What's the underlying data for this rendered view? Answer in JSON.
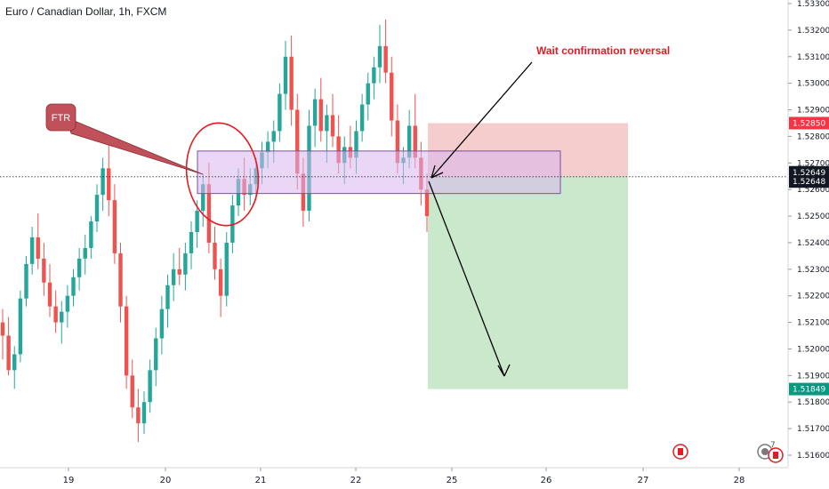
{
  "header": {
    "title": "Euro / Canadian Dollar, 1h, FXCM"
  },
  "chart_data": {
    "type": "candlestick",
    "symbol": "EURCAD",
    "timeframe": "1h",
    "ylim": [
      1.5155,
      1.5335
    ],
    "y_ticks": [
      "1.53300",
      "1.53200",
      "1.53100",
      "1.53000",
      "1.52900",
      "1.52800",
      "1.52700",
      "1.52600",
      "1.52500",
      "1.52400",
      "1.52300",
      "1.52200",
      "1.52100",
      "1.52000",
      "1.51900",
      "1.51800",
      "1.51700",
      "1.51600"
    ],
    "y_tick_values": [
      1.533,
      1.532,
      1.531,
      1.53,
      1.529,
      1.528,
      1.527,
      1.526,
      1.525,
      1.524,
      1.523,
      1.522,
      1.521,
      1.52,
      1.519,
      1.518,
      1.517,
      1.516
    ],
    "x_ticks": [
      "19",
      "20",
      "21",
      "22",
      "25",
      "26",
      "27",
      "28"
    ],
    "x_tick_bars": [
      17,
      44,
      71,
      98,
      125,
      151,
      178,
      205
    ],
    "bars_total": 218,
    "colors": {
      "up": "#26a69a",
      "down": "#ef5350",
      "ftr_callout": "#c0505a",
      "annotation": "#e31b23",
      "zone_fill": "#d8b6ee",
      "zone_stroke": "#7b4fa0",
      "stop_fill": "#f5c4c4",
      "target_fill": "#c3e6c6",
      "price_tag": "#131722",
      "stop_tag": "#f23645",
      "target_tag": "#089981"
    },
    "ohlc": [
      [
        1.521,
        1.5215,
        1.5196,
        1.5205
      ],
      [
        1.5205,
        1.5212,
        1.519,
        1.5192
      ],
      [
        1.5192,
        1.5201,
        1.5185,
        1.5198
      ],
      [
        1.5198,
        1.5222,
        1.5195,
        1.5219
      ],
      [
        1.5219,
        1.5235,
        1.5216,
        1.5232
      ],
      [
        1.5232,
        1.5246,
        1.5228,
        1.5242
      ],
      [
        1.5242,
        1.5251,
        1.523,
        1.5234
      ],
      [
        1.5234,
        1.524,
        1.522,
        1.5225
      ],
      [
        1.5225,
        1.5232,
        1.5212,
        1.5216
      ],
      [
        1.5216,
        1.5222,
        1.5206,
        1.521
      ],
      [
        1.521,
        1.5218,
        1.5202,
        1.5214
      ],
      [
        1.5214,
        1.5224,
        1.5208,
        1.522
      ],
      [
        1.522,
        1.523,
        1.5216,
        1.5227
      ],
      [
        1.5227,
        1.5238,
        1.5222,
        1.5234
      ],
      [
        1.5234,
        1.5243,
        1.5228,
        1.5238
      ],
      [
        1.5238,
        1.525,
        1.5234,
        1.5248
      ],
      [
        1.5248,
        1.5262,
        1.5244,
        1.5258
      ],
      [
        1.5258,
        1.5272,
        1.5252,
        1.5268
      ],
      [
        1.5268,
        1.5278,
        1.525,
        1.5256
      ],
      [
        1.5256,
        1.5262,
        1.5232,
        1.5236
      ],
      [
        1.5236,
        1.524,
        1.521,
        1.5216
      ],
      [
        1.5216,
        1.522,
        1.5185,
        1.519
      ],
      [
        1.519,
        1.5196,
        1.5174,
        1.5178
      ],
      [
        1.5178,
        1.5185,
        1.5165,
        1.5172
      ],
      [
        1.5172,
        1.5184,
        1.5168,
        1.518
      ],
      [
        1.518,
        1.5196,
        1.5176,
        1.5192
      ],
      [
        1.5192,
        1.5208,
        1.5186,
        1.5204
      ],
      [
        1.5204,
        1.522,
        1.5198,
        1.5215
      ],
      [
        1.5215,
        1.5228,
        1.5208,
        1.5224
      ],
      [
        1.5224,
        1.5236,
        1.5218,
        1.523
      ],
      [
        1.523,
        1.5238,
        1.5224,
        1.5228
      ],
      [
        1.5228,
        1.524,
        1.5222,
        1.5236
      ],
      [
        1.5236,
        1.5248,
        1.523,
        1.5244
      ],
      [
        1.5244,
        1.5256,
        1.5238,
        1.5252
      ],
      [
        1.5252,
        1.5266,
        1.5246,
        1.5262
      ],
      [
        1.5262,
        1.527,
        1.5236,
        1.524
      ],
      [
        1.524,
        1.5246,
        1.5226,
        1.523
      ],
      [
        1.523,
        1.5234,
        1.5212,
        1.522
      ],
      [
        1.522,
        1.5244,
        1.5216,
        1.524
      ],
      [
        1.524,
        1.5258,
        1.5236,
        1.5254
      ],
      [
        1.5254,
        1.5268,
        1.525,
        1.5264
      ],
      [
        1.5264,
        1.5272,
        1.5252,
        1.5258
      ],
      [
        1.5258,
        1.5268,
        1.5254,
        1.5262
      ],
      [
        1.5262,
        1.5272,
        1.5256,
        1.5268
      ],
      [
        1.5268,
        1.5278,
        1.5262,
        1.5274
      ],
      [
        1.5274,
        1.5282,
        1.5268,
        1.5278
      ],
      [
        1.5278,
        1.5286,
        1.527,
        1.5282
      ],
      [
        1.5282,
        1.53,
        1.5278,
        1.5296
      ],
      [
        1.5296,
        1.5316,
        1.529,
        1.531
      ],
      [
        1.531,
        1.5318,
        1.5284,
        1.529
      ],
      [
        1.529,
        1.5296,
        1.526,
        1.5266
      ],
      [
        1.5266,
        1.5272,
        1.5246,
        1.5252
      ],
      [
        1.5252,
        1.529,
        1.5248,
        1.5284
      ],
      [
        1.5284,
        1.5298,
        1.5276,
        1.5294
      ],
      [
        1.5294,
        1.5302,
        1.5278,
        1.5282
      ],
      [
        1.5282,
        1.5292,
        1.527,
        1.5288
      ],
      [
        1.5288,
        1.5296,
        1.5276,
        1.528
      ],
      [
        1.528,
        1.5288,
        1.5266,
        1.527
      ],
      [
        1.527,
        1.528,
        1.5262,
        1.5276
      ],
      [
        1.5276,
        1.5284,
        1.5268,
        1.5272
      ],
      [
        1.5272,
        1.5286,
        1.5266,
        1.5282
      ],
      [
        1.5282,
        1.5296,
        1.5278,
        1.5292
      ],
      [
        1.5292,
        1.5304,
        1.5286,
        1.53
      ],
      [
        1.53,
        1.531,
        1.5294,
        1.5306
      ],
      [
        1.5306,
        1.5322,
        1.53,
        1.5314
      ],
      [
        1.5314,
        1.5324,
        1.53,
        1.5304
      ],
      [
        1.5304,
        1.531,
        1.528,
        1.5286
      ],
      [
        1.5286,
        1.5292,
        1.5266,
        1.527
      ],
      [
        1.527,
        1.5276,
        1.5262,
        1.5272
      ],
      [
        1.5272,
        1.529,
        1.5268,
        1.5284
      ],
      [
        1.5284,
        1.5296,
        1.5268,
        1.5272
      ],
      [
        1.5272,
        1.5278,
        1.5254,
        1.526
      ],
      [
        1.526,
        1.5266,
        1.5244,
        1.525
      ]
    ],
    "ftr_zone": {
      "price_top": 1.52745,
      "price_bottom": 1.52585,
      "bar_start": 40,
      "bar_end": 151
    },
    "position": {
      "entry": 1.52649,
      "stop": 1.5285,
      "target": 1.51849,
      "bar_start": 125,
      "bar_end": 180
    },
    "price_tags": {
      "stop": "1.52850",
      "last_high": "1.52649",
      "last": "1.52648",
      "target": "1.51849"
    },
    "annotations": {
      "ftr_label": "FTR",
      "reversal_label": "Wait confirmation reversal"
    },
    "corner_counter": "7"
  }
}
